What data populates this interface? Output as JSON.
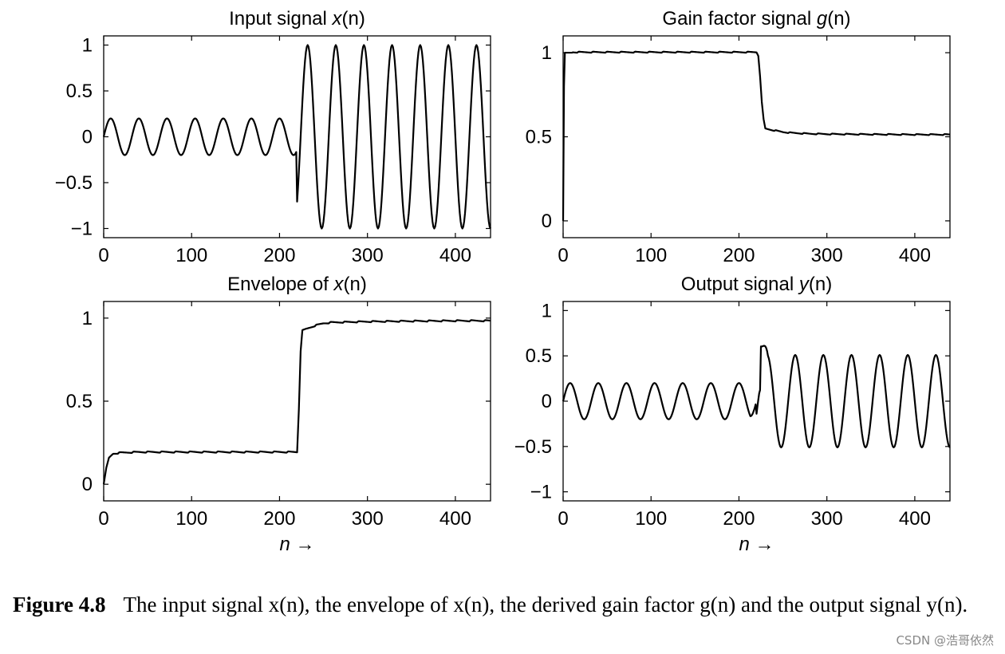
{
  "chart_data": [
    {
      "type": "line",
      "title": "Input signal x(n)",
      "title_text": "Input signal ",
      "title_var": "x",
      "title_suffix": "(n)",
      "xlabel": "",
      "ylabel": "",
      "xlim": [
        0,
        440
      ],
      "ylim": [
        -1.1,
        1.1
      ],
      "xticks": [
        0,
        100,
        200,
        300,
        400
      ],
      "yticks": [
        1,
        0.5,
        0,
        -0.5,
        -1
      ],
      "ytick_labels": [
        "1",
        "0.5",
        "0",
        "−0.5",
        "−1"
      ],
      "grid": false,
      "series": [
        {
          "model": "sinusoid",
          "x_start": 0,
          "x_end": 440,
          "step": 1,
          "period": 32,
          "segments": [
            {
              "from": 0,
              "to": 220,
              "amplitude": 0.2
            },
            {
              "from": 220,
              "to": 440,
              "amplitude": 1.0
            }
          ]
        }
      ]
    },
    {
      "type": "line",
      "title": "Gain factor signal g(n)",
      "title_text": "Gain factor signal ",
      "title_var": "g",
      "title_suffix": "(n)",
      "xlabel": "",
      "ylabel": "",
      "xlim": [
        0,
        440
      ],
      "ylim": [
        -0.1,
        1.1
      ],
      "xticks": [
        0,
        100,
        200,
        300,
        400
      ],
      "yticks": [
        1,
        0.5,
        0
      ],
      "ytick_labels": [
        "1",
        "0.5",
        "0"
      ],
      "grid": false,
      "series": [
        {
          "model": "points",
          "x": [
            0,
            1,
            2,
            220,
            222,
            224,
            226,
            228,
            230,
            235,
            240,
            245,
            250,
            260,
            280,
            300,
            330,
            360,
            400,
            440
          ],
          "y": [
            0,
            0.8,
            1,
            1,
            0.98,
            0.86,
            0.7,
            0.6,
            0.545,
            0.54,
            0.535,
            0.53,
            0.525,
            0.52,
            0.515,
            0.513,
            0.512,
            0.511,
            0.51,
            0.51
          ],
          "ripple": 0.012
        }
      ]
    },
    {
      "type": "line",
      "title": "Envelope of x(n)",
      "title_text": "Envelope of ",
      "title_var": "x",
      "title_suffix": "(n)",
      "xlabel": "n →",
      "ylabel": "",
      "xlim": [
        0,
        440
      ],
      "ylim": [
        -0.1,
        1.1
      ],
      "xticks": [
        0,
        100,
        200,
        300,
        400
      ],
      "yticks": [
        1,
        0.5,
        0
      ],
      "ytick_labels": [
        "1",
        "0.5",
        "0"
      ],
      "grid": false,
      "series": [
        {
          "model": "points",
          "x": [
            0,
            3,
            6,
            10,
            20,
            40,
            100,
            220,
            222,
            224,
            226,
            230,
            240,
            250,
            260,
            300,
            350,
            400,
            440
          ],
          "y": [
            0,
            0.1,
            0.16,
            0.18,
            0.186,
            0.19,
            0.19,
            0.19,
            0.45,
            0.8,
            0.92,
            0.93,
            0.95,
            0.965,
            0.97,
            0.975,
            0.978,
            0.98,
            0.98
          ],
          "ripple": 0.015
        }
      ]
    },
    {
      "type": "line",
      "title": "Output signal y(n)",
      "title_text": "Output signal ",
      "title_var": "y",
      "title_suffix": "(n)",
      "xlabel": "n →",
      "ylabel": "",
      "xlim": [
        0,
        440
      ],
      "ylim": [
        -1.1,
        1.1
      ],
      "xticks": [
        0,
        100,
        200,
        300,
        400
      ],
      "yticks": [
        1,
        0.5,
        0,
        -0.5,
        -1
      ],
      "ytick_labels": [
        "1",
        "0.5",
        "0",
        "−0.5",
        "−1"
      ],
      "grid": false,
      "series": [
        {
          "model": "sinusoid",
          "x_start": 0,
          "x_end": 440,
          "step": 1,
          "period": 32,
          "segments": [
            {
              "from": 0,
              "to": 220,
              "amplitude": 0.2
            },
            {
              "from": 220,
              "to": 440,
              "amplitude": 0.51
            }
          ],
          "overshoot": {
            "x": 223,
            "y": 0.68
          }
        }
      ]
    }
  ],
  "caption": {
    "label": "Figure 4.8",
    "text": "The input signal x(n), the envelope of x(n), the derived gain factor g(n) and the output signal y(n)."
  },
  "watermark": "CSDN @浩哥依然"
}
